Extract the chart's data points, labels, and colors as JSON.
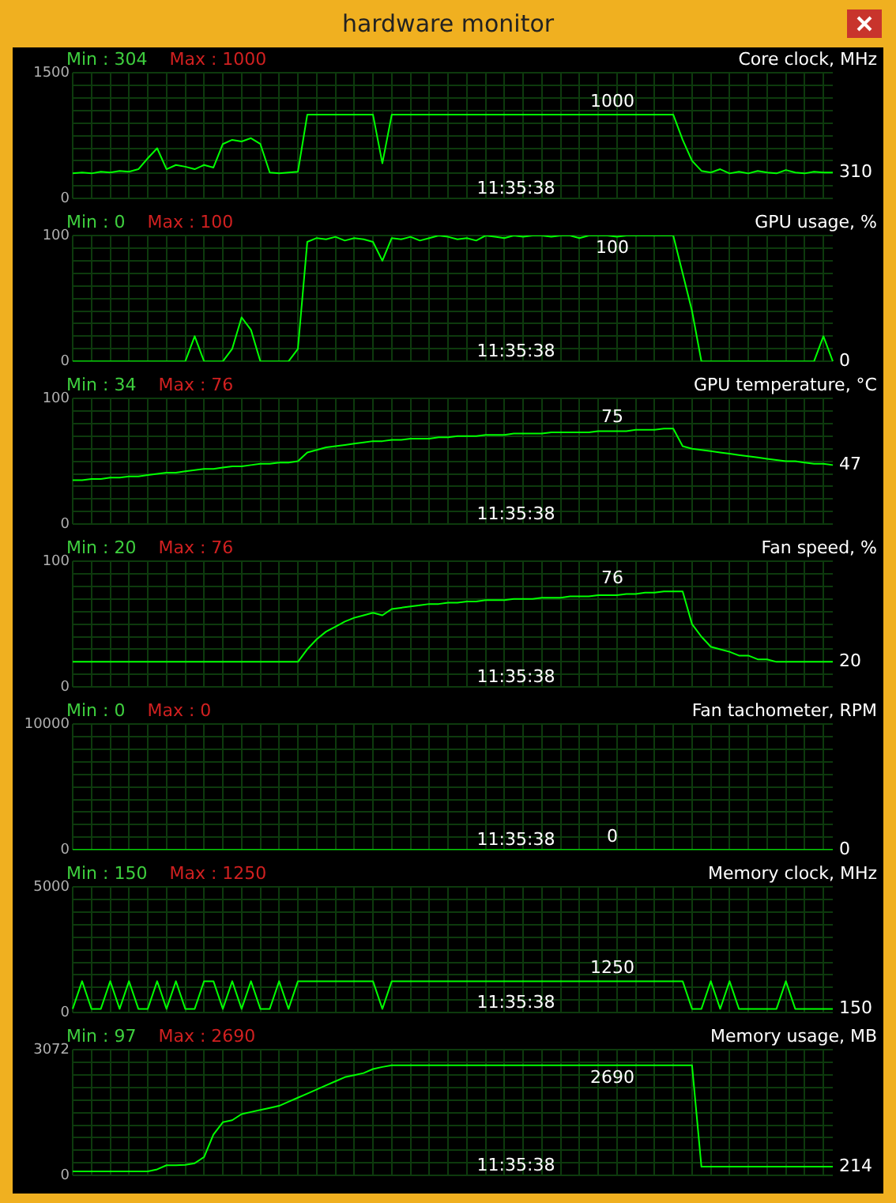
{
  "chart_data": [
    {
      "type": "line",
      "subtitle": "hardware monitor",
      "title": "Core clock, MHz",
      "annotations": [
        "Min : 304",
        "Max : 1000",
        "11:35:38",
        {
          "text": "1000",
          "y": 1000
        },
        "310"
      ],
      "categories": [
        null,
        null,
        null,
        null,
        null,
        null,
        null,
        null,
        null,
        null,
        null,
        null,
        null,
        null,
        null,
        null,
        null,
        null,
        null,
        null,
        null,
        null,
        null,
        null,
        null,
        null,
        null,
        null,
        null,
        null,
        null,
        null,
        null,
        null,
        null,
        null,
        null,
        null,
        null,
        null,
        null,
        null,
        null,
        null,
        null,
        null,
        null,
        null,
        null,
        null,
        null,
        null,
        null,
        null,
        null,
        null,
        null,
        null,
        null,
        null,
        null,
        null,
        null,
        null,
        null,
        null,
        null,
        null,
        null,
        null,
        null,
        null,
        null,
        null,
        null,
        null,
        null,
        null,
        null,
        null,
        null,
        null
      ],
      "ylim": [
        0,
        1500
      ],
      "yticks": [
        0,
        {
          "value": 150,
          "label": null
        },
        {
          "value": 300,
          "label": null
        },
        {
          "value": 450,
          "label": null
        },
        {
          "value": 600,
          "label": null
        },
        {
          "value": 750,
          "label": null
        },
        {
          "value": 900,
          "label": null
        },
        {
          "value": 1050,
          "label": null
        },
        {
          "value": 1200,
          "label": null
        },
        {
          "value": 1350,
          "label": null
        },
        1500
      ],
      "grid": true,
      "legend": false,
      "series": [
        {
          "color": "#00ff00",
          "values": [
            300,
            310,
            300,
            320,
            310,
            330,
            320,
            350,
            480,
            600,
            350,
            400,
            380,
            350,
            400,
            370,
            650,
            700,
            680,
            720,
            650,
            310,
            300,
            310,
            320,
            1000,
            1000,
            1000,
            1000,
            1000,
            1000,
            1000,
            1000,
            420,
            1000,
            1000,
            1000,
            1000,
            1000,
            1000,
            1000,
            1000,
            1000,
            1000,
            1000,
            1000,
            1000,
            1000,
            1000,
            1000,
            1000,
            1000,
            1000,
            1000,
            1000,
            1000,
            1000,
            1000,
            1000,
            1000,
            1000,
            1000,
            1000,
            1000,
            1000,
            700,
            450,
            330,
            310,
            350,
            300,
            320,
            300,
            330,
            310,
            300,
            340,
            310,
            300,
            320,
            310,
            310
          ]
        }
      ]
    },
    {
      "type": "line",
      "title": "GPU usage, %",
      "annotations": [
        "Min : 0",
        "Max : 100",
        "11:35:38",
        {
          "text": "100",
          "y": 100
        },
        "0"
      ],
      "categories": [
        null,
        null,
        null,
        null,
        null,
        null,
        null,
        null,
        null,
        null,
        null,
        null,
        null,
        null,
        null,
        null,
        null,
        null,
        null,
        null,
        null,
        null,
        null,
        null,
        null,
        null,
        null,
        null,
        null,
        null,
        null,
        null,
        null,
        null,
        null,
        null,
        null,
        null,
        null,
        null,
        null,
        null,
        null,
        null,
        null,
        null,
        null,
        null,
        null,
        null,
        null,
        null,
        null,
        null,
        null,
        null,
        null,
        null,
        null,
        null,
        null,
        null,
        null,
        null,
        null,
        null,
        null,
        null,
        null,
        null,
        null,
        null,
        null,
        null,
        null,
        null,
        null,
        null,
        null,
        null,
        null,
        null
      ],
      "ylim": [
        0,
        100
      ],
      "yticks": [
        0,
        {
          "value": 10,
          "label": null
        },
        {
          "value": 20,
          "label": null
        },
        {
          "value": 30,
          "label": null
        },
        {
          "value": 40,
          "label": null
        },
        {
          "value": 50,
          "label": null
        },
        {
          "value": 60,
          "label": null
        },
        {
          "value": 70,
          "label": null
        },
        {
          "value": 80,
          "label": null
        },
        {
          "value": 90,
          "label": null
        },
        100
      ],
      "grid": true,
      "legend": false,
      "series": [
        {
          "color": "#00ff00",
          "values": [
            0,
            0,
            0,
            0,
            0,
            0,
            0,
            0,
            0,
            0,
            0,
            0,
            0,
            20,
            0,
            0,
            0,
            10,
            35,
            25,
            0,
            0,
            0,
            0,
            10,
            95,
            98,
            97,
            99,
            96,
            98,
            97,
            95,
            80,
            98,
            97,
            99,
            96,
            98,
            100,
            99,
            97,
            98,
            96,
            100,
            99,
            98,
            100,
            99,
            100,
            100,
            99,
            100,
            100,
            98,
            100,
            100,
            100,
            99,
            100,
            100,
            100,
            100,
            100,
            100,
            70,
            40,
            0,
            0,
            0,
            0,
            0,
            0,
            0,
            0,
            0,
            0,
            0,
            0,
            0,
            20,
            0
          ]
        }
      ]
    },
    {
      "type": "line",
      "title": "GPU temperature, °C",
      "annotations": [
        "Min : 34",
        "Max : 76",
        "11:35:38",
        {
          "text": "75",
          "y": 75
        },
        "47"
      ],
      "categories": [
        null,
        null,
        null,
        null,
        null,
        null,
        null,
        null,
        null,
        null,
        null,
        null,
        null,
        null,
        null,
        null,
        null,
        null,
        null,
        null,
        null,
        null,
        null,
        null,
        null,
        null,
        null,
        null,
        null,
        null,
        null,
        null,
        null,
        null,
        null,
        null,
        null,
        null,
        null,
        null,
        null,
        null,
        null,
        null,
        null,
        null,
        null,
        null,
        null,
        null,
        null,
        null,
        null,
        null,
        null,
        null,
        null,
        null,
        null,
        null,
        null,
        null,
        null,
        null,
        null,
        null,
        null,
        null,
        null,
        null,
        null,
        null,
        null,
        null,
        null,
        null,
        null,
        null,
        null,
        null,
        null,
        null
      ],
      "ylim": [
        0,
        100
      ],
      "yticks": [
        0,
        {
          "value": 10,
          "label": null
        },
        {
          "value": 20,
          "label": null
        },
        {
          "value": 30,
          "label": null
        },
        {
          "value": 40,
          "label": null
        },
        {
          "value": 50,
          "label": null
        },
        {
          "value": 60,
          "label": null
        },
        {
          "value": 70,
          "label": null
        },
        {
          "value": 80,
          "label": null
        },
        {
          "value": 90,
          "label": null
        },
        100
      ],
      "grid": true,
      "legend": false,
      "series": [
        {
          "color": "#00ff00",
          "values": [
            35,
            35,
            36,
            36,
            37,
            37,
            38,
            38,
            39,
            40,
            41,
            41,
            42,
            43,
            44,
            44,
            45,
            46,
            46,
            47,
            48,
            48,
            49,
            49,
            50,
            57,
            59,
            61,
            62,
            63,
            64,
            65,
            66,
            66,
            67,
            67,
            68,
            68,
            68,
            69,
            69,
            70,
            70,
            70,
            71,
            71,
            71,
            72,
            72,
            72,
            72,
            73,
            73,
            73,
            73,
            73,
            74,
            74,
            74,
            74,
            75,
            75,
            75,
            76,
            76,
            62,
            60,
            59,
            58,
            57,
            56,
            55,
            54,
            53,
            52,
            51,
            50,
            50,
            49,
            48,
            48,
            47
          ]
        }
      ]
    },
    {
      "type": "line",
      "title": "Fan speed, %",
      "annotations": [
        "Min : 20",
        "Max : 76",
        "11:35:38",
        {
          "text": "76",
          "y": 76
        },
        "20"
      ],
      "categories": [
        null,
        null,
        null,
        null,
        null,
        null,
        null,
        null,
        null,
        null,
        null,
        null,
        null,
        null,
        null,
        null,
        null,
        null,
        null,
        null,
        null,
        null,
        null,
        null,
        null,
        null,
        null,
        null,
        null,
        null,
        null,
        null,
        null,
        null,
        null,
        null,
        null,
        null,
        null,
        null,
        null,
        null,
        null,
        null,
        null,
        null,
        null,
        null,
        null,
        null,
        null,
        null,
        null,
        null,
        null,
        null,
        null,
        null,
        null,
        null,
        null,
        null,
        null,
        null,
        null,
        null,
        null,
        null,
        null,
        null,
        null,
        null,
        null,
        null,
        null,
        null,
        null,
        null,
        null,
        null,
        null,
        null
      ],
      "ylim": [
        0,
        100
      ],
      "yticks": [
        0,
        {
          "value": 10,
          "label": null
        },
        {
          "value": 20,
          "label": null
        },
        {
          "value": 30,
          "label": null
        },
        {
          "value": 40,
          "label": null
        },
        {
          "value": 50,
          "label": null
        },
        {
          "value": 60,
          "label": null
        },
        {
          "value": 70,
          "label": null
        },
        {
          "value": 80,
          "label": null
        },
        {
          "value": 90,
          "label": null
        },
        100
      ],
      "grid": true,
      "legend": false,
      "series": [
        {
          "color": "#00ff00",
          "values": [
            20,
            20,
            20,
            20,
            20,
            20,
            20,
            20,
            20,
            20,
            20,
            20,
            20,
            20,
            20,
            20,
            20,
            20,
            20,
            20,
            20,
            20,
            20,
            20,
            20,
            30,
            38,
            44,
            48,
            52,
            55,
            57,
            59,
            57,
            62,
            63,
            64,
            65,
            66,
            66,
            67,
            67,
            68,
            68,
            69,
            69,
            69,
            70,
            70,
            70,
            71,
            71,
            71,
            72,
            72,
            72,
            73,
            73,
            73,
            74,
            74,
            75,
            75,
            76,
            76,
            76,
            50,
            40,
            32,
            30,
            28,
            25,
            25,
            22,
            22,
            20,
            20,
            20,
            20,
            20,
            20,
            20
          ]
        }
      ]
    },
    {
      "type": "line",
      "title": "Fan tachometer, RPM",
      "annotations": [
        "Min : 0",
        "Max : 0",
        "11:35:38",
        "0",
        "0"
      ],
      "categories": [
        null,
        null,
        null,
        null,
        null,
        null,
        null,
        null,
        null,
        null,
        null,
        null,
        null,
        null,
        null,
        null,
        null,
        null,
        null,
        null,
        null,
        null,
        null,
        null,
        null,
        null,
        null,
        null,
        null,
        null,
        null,
        null,
        null,
        null,
        null,
        null,
        null,
        null,
        null,
        null,
        null,
        null,
        null,
        null,
        null,
        null,
        null,
        null,
        null,
        null,
        null,
        null,
        null,
        null,
        null,
        null,
        null,
        null,
        null,
        null,
        null,
        null,
        null,
        null,
        null,
        null,
        null,
        null,
        null,
        null,
        null,
        null,
        null,
        null,
        null,
        null,
        null,
        null,
        null,
        null,
        null,
        null
      ],
      "ylim": [
        0,
        10000
      ],
      "yticks": [
        0,
        {
          "value": 1000,
          "label": null
        },
        {
          "value": 2000,
          "label": null
        },
        {
          "value": 3000,
          "label": null
        },
        {
          "value": 4000,
          "label": null
        },
        {
          "value": 5000,
          "label": null
        },
        {
          "value": 6000,
          "label": null
        },
        {
          "value": 7000,
          "label": null
        },
        {
          "value": 8000,
          "label": null
        },
        {
          "value": 9000,
          "label": null
        },
        10000
      ],
      "grid": true,
      "legend": false,
      "series": [
        {
          "color": "#00ff00",
          "values": [
            0,
            0,
            0,
            0,
            0,
            0,
            0,
            0,
            0,
            0,
            0,
            0,
            0,
            0,
            0,
            0,
            0,
            0,
            0,
            0,
            0,
            0,
            0,
            0,
            0,
            0,
            0,
            0,
            0,
            0,
            0,
            0,
            0,
            0,
            0,
            0,
            0,
            0,
            0,
            0,
            0,
            0,
            0,
            0,
            0,
            0,
            0,
            0,
            0,
            0,
            0,
            0,
            0,
            0,
            0,
            0,
            0,
            0,
            0,
            0,
            0,
            0,
            0,
            0,
            0,
            0,
            0,
            0,
            0,
            0,
            0,
            0,
            0,
            0,
            0,
            0,
            0,
            0,
            0,
            0,
            0,
            0
          ]
        }
      ]
    },
    {
      "type": "line",
      "title": "Memory clock, MHz",
      "annotations": [
        "Min : 150",
        "Max : 1250",
        "11:35:38",
        {
          "text": "1250",
          "y": 1250
        },
        "150"
      ],
      "categories": [
        null,
        null,
        null,
        null,
        null,
        null,
        null,
        null,
        null,
        null,
        null,
        null,
        null,
        null,
        null,
        null,
        null,
        null,
        null,
        null,
        null,
        null,
        null,
        null,
        null,
        null,
        null,
        null,
        null,
        null,
        null,
        null,
        null,
        null,
        null,
        null,
        null,
        null,
        null,
        null,
        null,
        null,
        null,
        null,
        null,
        null,
        null,
        null,
        null,
        null,
        null,
        null,
        null,
        null,
        null,
        null,
        null,
        null,
        null,
        null,
        null,
        null,
        null,
        null,
        null,
        null,
        null,
        null,
        null,
        null,
        null,
        null,
        null,
        null,
        null,
        null,
        null,
        null,
        null,
        null,
        null,
        null
      ],
      "ylim": [
        0,
        5000
      ],
      "yticks": [
        0,
        {
          "value": 500,
          "label": null
        },
        {
          "value": 1000,
          "label": null
        },
        {
          "value": 1500,
          "label": null
        },
        {
          "value": 2000,
          "label": null
        },
        {
          "value": 2500,
          "label": null
        },
        {
          "value": 3000,
          "label": null
        },
        {
          "value": 3500,
          "label": null
        },
        {
          "value": 4000,
          "label": null
        },
        {
          "value": 4500,
          "label": null
        },
        5000
      ],
      "grid": true,
      "legend": false,
      "series": [
        {
          "color": "#00ff00",
          "values": [
            150,
            1250,
            150,
            150,
            1250,
            150,
            1250,
            150,
            150,
            1250,
            150,
            1250,
            150,
            150,
            1250,
            1250,
            150,
            1250,
            150,
            1250,
            150,
            150,
            1250,
            150,
            1250,
            1250,
            1250,
            1250,
            1250,
            1250,
            1250,
            1250,
            1250,
            150,
            1250,
            1250,
            1250,
            1250,
            1250,
            1250,
            1250,
            1250,
            1250,
            1250,
            1250,
            1250,
            1250,
            1250,
            1250,
            1250,
            1250,
            1250,
            1250,
            1250,
            1250,
            1250,
            1250,
            1250,
            1250,
            1250,
            1250,
            1250,
            1250,
            1250,
            1250,
            1250,
            150,
            150,
            1250,
            150,
            1250,
            150,
            150,
            150,
            150,
            150,
            1250,
            150,
            150,
            150,
            150,
            150
          ]
        }
      ]
    },
    {
      "type": "line",
      "title": "Memory usage, MB",
      "annotations": [
        "Min : 97",
        "Max : 2690",
        "11:35:38",
        {
          "text": "2690",
          "y": 2690
        },
        "214"
      ],
      "categories": [
        null,
        null,
        null,
        null,
        null,
        null,
        null,
        null,
        null,
        null,
        null,
        null,
        null,
        null,
        null,
        null,
        null,
        null,
        null,
        null,
        null,
        null,
        null,
        null,
        null,
        null,
        null,
        null,
        null,
        null,
        null,
        null,
        null,
        null,
        null,
        null,
        null,
        null,
        null,
        null,
        null,
        null,
        null,
        null,
        null,
        null,
        null,
        null,
        null,
        null,
        null,
        null,
        null,
        null,
        null,
        null,
        null,
        null,
        null,
        null,
        null,
        null,
        null,
        null,
        null,
        null,
        null,
        null,
        null,
        null,
        null,
        null,
        null,
        null,
        null,
        null,
        null,
        null,
        null,
        null,
        null,
        null
      ],
      "ylim": [
        0,
        3072
      ],
      "yticks": [
        0,
        {
          "value": 307.2,
          "label": null
        },
        {
          "value": 614.4,
          "label": null
        },
        {
          "value": 921.6,
          "label": null
        },
        {
          "value": 1228.8,
          "label": null
        },
        {
          "value": 1536,
          "label": null
        },
        {
          "value": 1843.2,
          "label": null
        },
        {
          "value": 2150.4,
          "label": null
        },
        {
          "value": 2457.6,
          "label": null
        },
        {
          "value": 2764.8,
          "label": null
        },
        3072
      ],
      "grid": true,
      "legend": false,
      "series": [
        {
          "color": "#00ff00",
          "values": [
            100,
            100,
            100,
            100,
            100,
            100,
            100,
            100,
            100,
            150,
            250,
            250,
            260,
            300,
            450,
            1000,
            1300,
            1350,
            1500,
            1550,
            1600,
            1650,
            1700,
            1800,
            1900,
            2000,
            2100,
            2200,
            2300,
            2400,
            2450,
            2500,
            2600,
            2650,
            2690,
            2690,
            2690,
            2690,
            2690,
            2690,
            2690,
            2690,
            2690,
            2690,
            2690,
            2690,
            2690,
            2690,
            2690,
            2690,
            2690,
            2690,
            2690,
            2690,
            2690,
            2690,
            2690,
            2690,
            2690,
            2690,
            2690,
            2690,
            2690,
            2690,
            2690,
            2690,
            2690,
            214,
            214,
            214,
            214,
            214,
            214,
            214,
            214,
            214,
            214,
            214,
            214,
            214,
            214,
            214
          ]
        }
      ]
    }
  ]
}
